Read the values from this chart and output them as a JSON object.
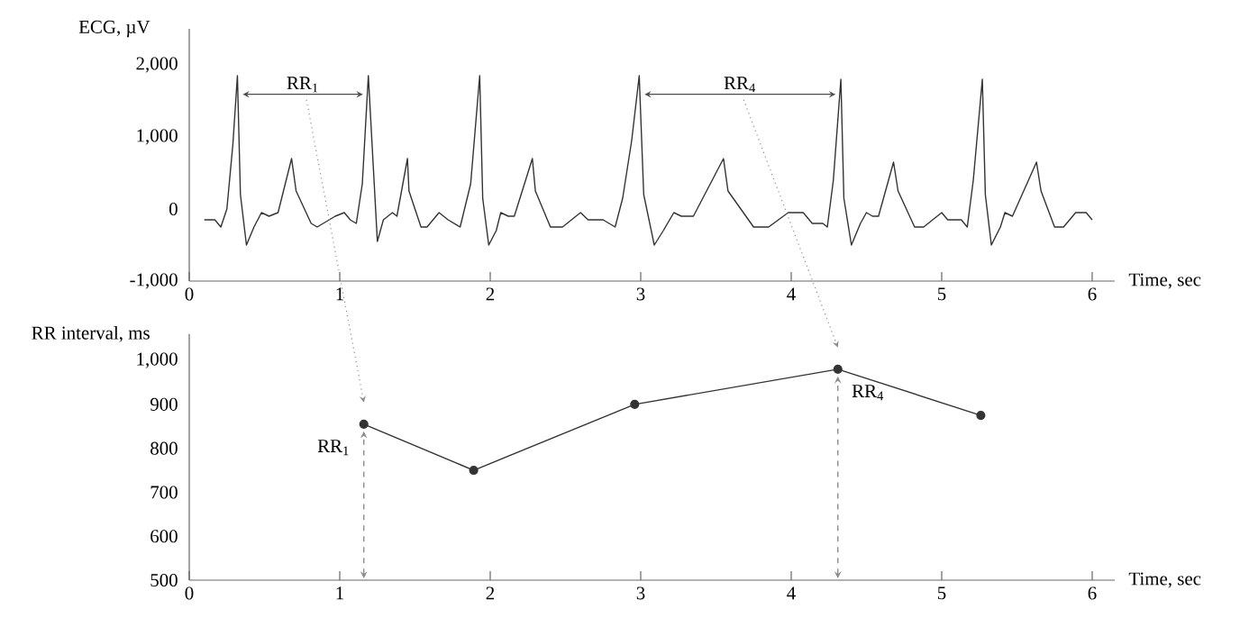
{
  "chart_data": [
    {
      "type": "line",
      "ylabel": "ECG, µV",
      "xlabel": "Time, sec",
      "color": "#333333",
      "xlim": [
        0,
        6.15
      ],
      "ylim": [
        -1000,
        2500
      ],
      "xticks": [
        0,
        1,
        2,
        3,
        4,
        5,
        6
      ],
      "yticks": [
        {
          "value": -1000,
          "label": "-1,000"
        },
        0,
        {
          "value": 1000,
          "label": "1,000"
        },
        {
          "value": 2000,
          "label": "2,000"
        }
      ],
      "x": [
        0.1,
        0.17,
        0.21,
        0.25,
        0.29,
        0.32,
        0.34,
        0.38,
        0.43,
        0.48,
        0.53,
        0.59,
        0.68,
        0.71,
        0.81,
        0.85,
        0.97,
        1.03,
        1.07,
        1.11,
        1.15,
        1.19,
        1.25,
        1.29,
        1.35,
        1.38,
        1.45,
        1.46,
        1.54,
        1.58,
        1.66,
        1.72,
        1.8,
        1.87,
        1.93,
        1.95,
        1.99,
        2.04,
        2.07,
        2.12,
        2.16,
        2.28,
        2.3,
        2.4,
        2.48,
        2.6,
        2.65,
        2.75,
        2.83,
        2.88,
        2.94,
        2.99,
        3.02,
        3.09,
        3.15,
        3.22,
        3.27,
        3.35,
        3.55,
        3.58,
        3.75,
        3.85,
        3.98,
        4.08,
        4.14,
        4.21,
        4.24,
        4.28,
        4.33,
        4.35,
        4.4,
        4.46,
        4.5,
        4.54,
        4.58,
        4.68,
        4.71,
        4.82,
        4.88,
        5.0,
        5.04,
        5.13,
        5.17,
        5.21,
        5.27,
        5.29,
        5.33,
        5.39,
        5.42,
        5.47,
        5.63,
        5.66,
        5.75,
        5.81,
        5.89,
        5.96,
        6.0
      ],
      "values": [
        -150,
        -150,
        -250,
        0,
        900,
        1850,
        200,
        -500,
        -250,
        -50,
        -100,
        -50,
        700,
        250,
        -200,
        -250,
        -100,
        -50,
        -150,
        -200,
        350,
        1850,
        -450,
        -150,
        -50,
        -100,
        700,
        250,
        -250,
        -250,
        -50,
        -150,
        -250,
        350,
        1850,
        150,
        -500,
        -300,
        -50,
        -100,
        -100,
        700,
        250,
        -250,
        -250,
        -50,
        -150,
        -150,
        -250,
        150,
        950,
        1850,
        200,
        -500,
        -300,
        -50,
        -100,
        -100,
        700,
        250,
        -250,
        -250,
        -50,
        -50,
        -200,
        -200,
        -250,
        400,
        1800,
        150,
        -500,
        -200,
        -50,
        -100,
        -100,
        650,
        250,
        -250,
        -250,
        -50,
        -150,
        -150,
        -250,
        400,
        1800,
        200,
        -500,
        -250,
        -50,
        -100,
        650,
        250,
        -250,
        -250,
        -50,
        -50,
        -150
      ],
      "annotations": [
        "RR$_{1}$",
        "RR$_{4}$"
      ]
    },
    {
      "type": "line",
      "ylabel": "RR interval, ms",
      "xlabel": "Time, sec",
      "color": "#333333",
      "marker": "circle",
      "xlim": [
        0,
        6.15
      ],
      "ylim": [
        500,
        1060
      ],
      "xticks": [
        0,
        1,
        2,
        3,
        4,
        5,
        6
      ],
      "yticks": [
        500,
        600,
        700,
        800,
        900,
        {
          "value": 1000,
          "label": "1,000"
        }
      ],
      "x": [
        1.16,
        1.89,
        2.96,
        4.31,
        5.26
      ],
      "values": [
        855,
        750,
        900,
        980,
        875
      ],
      "annotations": [
        {
          "text": "RR$_{1}$",
          "x": 1.16,
          "y": 855
        },
        {
          "text": "RR$_{4}$",
          "x": 4.31,
          "y": 980
        }
      ]
    }
  ]
}
